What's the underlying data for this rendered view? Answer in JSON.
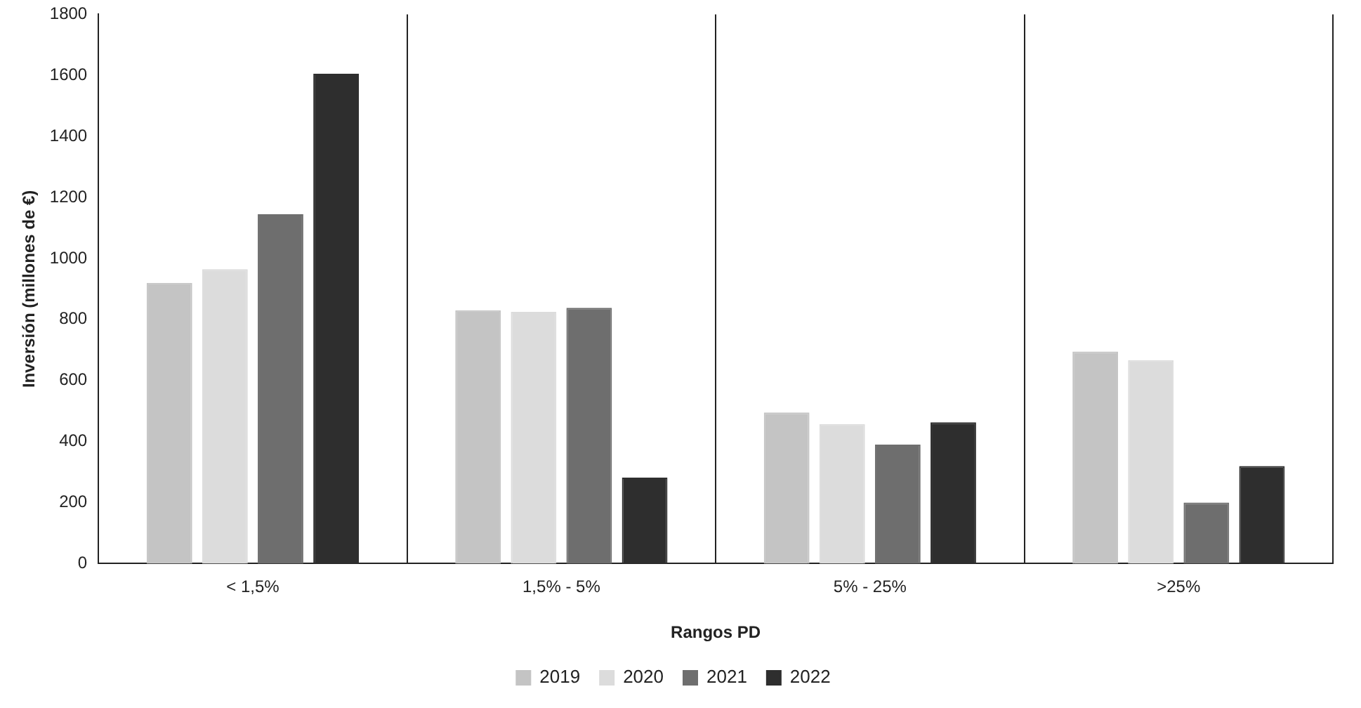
{
  "chart_data": {
    "type": "bar",
    "xlabel": "Rangos PD",
    "ylabel": "Inversión (millones de €)",
    "categories": [
      "< 1,5%",
      "1,5% - 5%",
      "5% - 25%",
      ">25%"
    ],
    "series": [
      {
        "name": "2019",
        "color": "#c4c4c4",
        "values": [
          920,
          830,
          495,
          695
        ]
      },
      {
        "name": "2020",
        "color": "#dcdcdc",
        "values": [
          965,
          825,
          457,
          667
        ]
      },
      {
        "name": "2021",
        "color": "#6e6e6e",
        "values": [
          1145,
          838,
          390,
          200
        ]
      },
      {
        "name": "2022",
        "color": "#2e2e2e",
        "values": [
          1605,
          282,
          463,
          320
        ]
      }
    ],
    "ylim": [
      0,
      1800
    ],
    "yticks": [
      0,
      200,
      400,
      600,
      800,
      1000,
      1200,
      1400,
      1600,
      1800
    ],
    "grid": "x",
    "legend": "bottom"
  }
}
